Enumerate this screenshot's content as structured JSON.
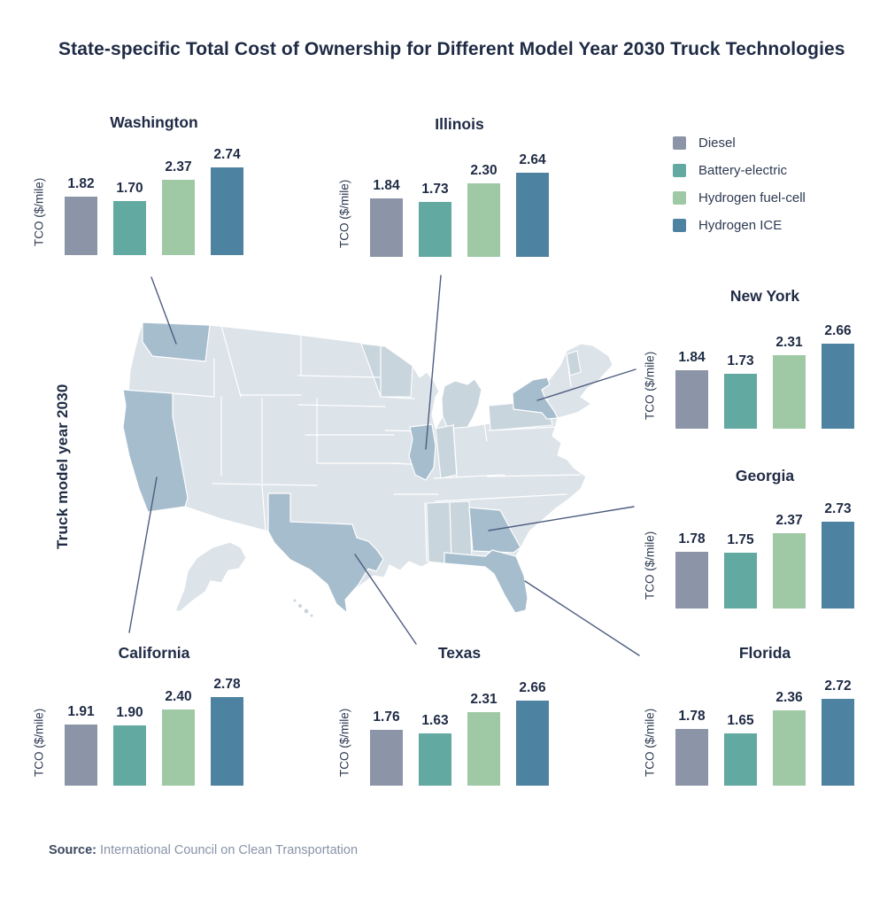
{
  "title": "State-specific Total Cost of Ownership for Different Model Year 2030 Truck Technologies",
  "map": {
    "label": "Truck model year 2030",
    "colors": {
      "state_base": "#DCE3E9",
      "state_mid": "#C9D5DD",
      "state_highlight": "#A6BDCD",
      "border": "#FFFFFF",
      "leader_line": "#4E5C7F"
    },
    "highlighted_states": [
      "Washington",
      "California",
      "Texas",
      "Illinois",
      "New York",
      "Georgia",
      "Florida"
    ]
  },
  "legend": [
    {
      "label": "Diesel",
      "color": "#8B95A7"
    },
    {
      "label": "Battery-electric",
      "color": "#62A9A2"
    },
    {
      "label": "Hydrogen fuel-cell",
      "color": "#9FC8A5"
    },
    {
      "label": "Hydrogen ICE",
      "color": "#4D82A0"
    }
  ],
  "chart_data": {
    "type": "bar",
    "ylabel": "TCO ($/mile)",
    "categories": [
      "Diesel",
      "Battery-electric",
      "Hydrogen fuel-cell",
      "Hydrogen ICE"
    ],
    "colors": [
      "#8B95A7",
      "#62A9A2",
      "#9FC8A5",
      "#4D82A0"
    ],
    "ylim": [
      0,
      2.8
    ],
    "charts": [
      {
        "state": "Washington",
        "values": [
          1.82,
          1.7,
          2.37,
          2.74
        ]
      },
      {
        "state": "Illinois",
        "values": [
          1.84,
          1.73,
          2.3,
          2.64
        ]
      },
      {
        "state": "New York",
        "values": [
          1.84,
          1.73,
          2.31,
          2.66
        ]
      },
      {
        "state": "Georgia",
        "values": [
          1.78,
          1.75,
          2.37,
          2.73
        ]
      },
      {
        "state": "Florida",
        "values": [
          1.78,
          1.65,
          2.36,
          2.72
        ]
      },
      {
        "state": "California",
        "values": [
          1.91,
          1.9,
          2.4,
          2.78
        ]
      },
      {
        "state": "Texas",
        "values": [
          1.76,
          1.63,
          2.31,
          2.66
        ]
      }
    ]
  },
  "source": {
    "label": "Source:",
    "text": "International Council on Clean Transportation"
  }
}
